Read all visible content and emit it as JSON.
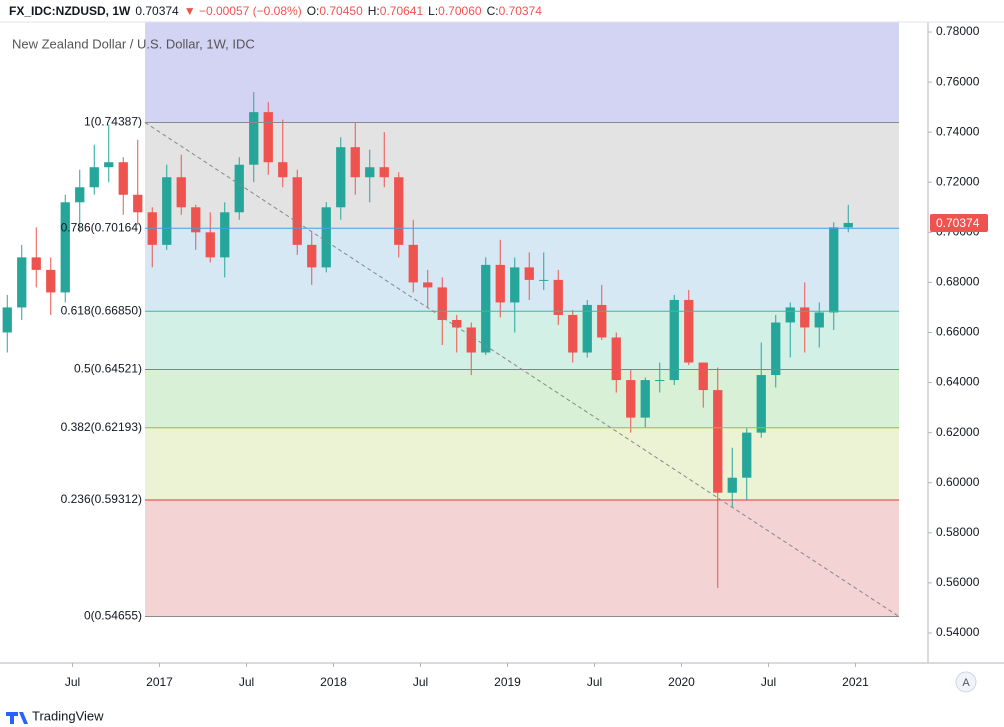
{
  "header": {
    "symbol": "FX_IDC:NZDUSD, 1W",
    "last": "0.70374",
    "change": "▼ −0.00057 (−0.08%)",
    "ohlc": [
      {
        "key": "O:",
        "value": "0.70450"
      },
      {
        "key": "H:",
        "value": "0.70641"
      },
      {
        "key": "L:",
        "value": "0.70060"
      },
      {
        "key": "C:",
        "value": "0.70374"
      }
    ]
  },
  "footer": {
    "brand": "TradingView",
    "button": "A"
  },
  "chart_data": {
    "type": "candlestick",
    "title": "New Zealand Dollar / U.S. Dollar, 1W, IDC",
    "x": [
      "2016-02",
      "2016-03",
      "2016-04",
      "2016-05",
      "2016-06",
      "2016-07",
      "2016-08",
      "2016-09",
      "2016-10",
      "2016-11",
      "2016-12",
      "2017-01",
      "2017-02",
      "2017-03",
      "2017-04",
      "2017-05",
      "2017-06",
      "2017-07",
      "2017-08",
      "2017-09",
      "2017-10",
      "2017-11",
      "2017-12",
      "2018-01",
      "2018-02",
      "2018-03",
      "2018-04",
      "2018-05",
      "2018-06",
      "2018-07",
      "2018-08",
      "2018-09",
      "2018-10",
      "2018-11",
      "2018-12",
      "2019-01",
      "2019-02",
      "2019-03",
      "2019-04",
      "2019-05",
      "2019-06",
      "2019-07",
      "2019-08",
      "2019-09",
      "2019-10",
      "2019-11",
      "2019-12",
      "2020-01",
      "2020-02",
      "2020-03",
      "2020-04",
      "2020-05",
      "2020-06",
      "2020-07",
      "2020-08",
      "2020-09",
      "2020-10",
      "2020-11",
      "2020-12"
    ],
    "open": [
      0.66,
      0.67,
      0.69,
      0.685,
      0.676,
      0.712,
      0.718,
      0.726,
      0.728,
      0.715,
      0.708,
      0.695,
      0.722,
      0.71,
      0.7,
      0.69,
      0.708,
      0.727,
      0.748,
      0.728,
      0.722,
      0.695,
      0.686,
      0.71,
      0.734,
      0.722,
      0.726,
      0.722,
      0.695,
      0.68,
      0.678,
      0.665,
      0.662,
      0.652,
      0.687,
      0.672,
      0.686,
      0.681,
      0.681,
      0.667,
      0.652,
      0.671,
      0.658,
      0.641,
      0.626,
      0.641,
      0.641,
      0.673,
      0.648,
      0.637,
      0.596,
      0.602,
      0.62,
      0.643,
      0.664,
      0.67,
      0.662,
      0.668,
      0.702
    ],
    "high": [
      0.675,
      0.695,
      0.702,
      0.69,
      0.715,
      0.725,
      0.735,
      0.743,
      0.73,
      0.737,
      0.71,
      0.727,
      0.731,
      0.711,
      0.708,
      0.712,
      0.73,
      0.756,
      0.752,
      0.745,
      0.725,
      0.7,
      0.712,
      0.738,
      0.744,
      0.733,
      0.74,
      0.724,
      0.705,
      0.685,
      0.682,
      0.667,
      0.664,
      0.69,
      0.697,
      0.69,
      0.692,
      0.692,
      0.685,
      0.669,
      0.673,
      0.679,
      0.66,
      0.645,
      0.642,
      0.648,
      0.675,
      0.677,
      0.648,
      0.646,
      0.614,
      0.622,
      0.656,
      0.667,
      0.672,
      0.68,
      0.672,
      0.704,
      0.711
    ],
    "low": [
      0.652,
      0.665,
      0.678,
      0.667,
      0.672,
      0.7,
      0.715,
      0.72,
      0.707,
      0.703,
      0.686,
      0.693,
      0.707,
      0.693,
      0.688,
      0.682,
      0.705,
      0.72,
      0.723,
      0.718,
      0.691,
      0.679,
      0.684,
      0.705,
      0.715,
      0.712,
      0.718,
      0.69,
      0.676,
      0.67,
      0.655,
      0.652,
      0.643,
      0.651,
      0.666,
      0.66,
      0.673,
      0.677,
      0.663,
      0.648,
      0.65,
      0.657,
      0.636,
      0.62,
      0.622,
      0.636,
      0.639,
      0.647,
      0.63,
      0.558,
      0.59,
      0.593,
      0.618,
      0.638,
      0.65,
      0.652,
      0.654,
      0.661,
      0.7
    ],
    "close": [
      0.67,
      0.69,
      0.685,
      0.676,
      0.712,
      0.718,
      0.726,
      0.728,
      0.715,
      0.708,
      0.695,
      0.722,
      0.71,
      0.7,
      0.69,
      0.708,
      0.727,
      0.748,
      0.728,
      0.722,
      0.695,
      0.686,
      0.71,
      0.734,
      0.722,
      0.726,
      0.722,
      0.695,
      0.68,
      0.678,
      0.665,
      0.662,
      0.652,
      0.687,
      0.672,
      0.686,
      0.681,
      0.681,
      0.667,
      0.652,
      0.671,
      0.658,
      0.641,
      0.626,
      0.641,
      0.641,
      0.673,
      0.648,
      0.637,
      0.596,
      0.602,
      0.62,
      0.643,
      0.664,
      0.67,
      0.662,
      0.668,
      0.702,
      0.70374
    ],
    "up_color": "#26a69a",
    "down_color": "#ef5350",
    "xlim": [
      "2016-02",
      "2021-06"
    ],
    "xticks": [
      {
        "value": "2016-07",
        "label": "Jul"
      },
      {
        "value": "2017-01",
        "label": "2017"
      },
      {
        "value": "2017-07",
        "label": "Jul"
      },
      {
        "value": "2018-01",
        "label": "2018"
      },
      {
        "value": "2018-07",
        "label": "Jul"
      },
      {
        "value": "2019-01",
        "label": "2019"
      },
      {
        "value": "2019-07",
        "label": "Jul"
      },
      {
        "value": "2020-01",
        "label": "2020"
      },
      {
        "value": "2020-07",
        "label": "Jul"
      },
      {
        "value": "2021-01",
        "label": "2021"
      }
    ],
    "ylim": [
      0.528,
      0.784
    ],
    "yticks": [
      {
        "value": 0.54,
        "label": "0.54000"
      },
      {
        "value": 0.56,
        "label": "0.56000"
      },
      {
        "value": 0.58,
        "label": "0.58000"
      },
      {
        "value": 0.6,
        "label": "0.60000"
      },
      {
        "value": 0.62,
        "label": "0.62000"
      },
      {
        "value": 0.64,
        "label": "0.64000"
      },
      {
        "value": 0.66,
        "label": "0.66000"
      },
      {
        "value": 0.68,
        "label": "0.68000"
      },
      {
        "value": 0.7,
        "label": "0.70000"
      },
      {
        "value": 0.72,
        "label": "0.72000"
      },
      {
        "value": 0.74,
        "label": "0.74000"
      },
      {
        "value": 0.76,
        "label": "0.76000"
      },
      {
        "value": 0.78,
        "label": "0.78000"
      }
    ],
    "last_price": {
      "value": 0.70374,
      "label": "0.70374"
    },
    "fib": {
      "start": "2016-12",
      "end": "2021-04",
      "levels": [
        {
          "value": 0.74387,
          "label": "1(0.74387)",
          "color": "#8a8a8a",
          "fill": "#d3d3f3"
        },
        {
          "value": 0.70164,
          "label": "0.786(0.70164)",
          "color": "#4a9ee0",
          "fill": "#e3e3e3"
        },
        {
          "value": 0.6685,
          "label": "0.618(0.66850)",
          "color": "#2fbf9a",
          "fill": "#d6e8f4"
        },
        {
          "value": 0.64521,
          "label": "0.5(0.64521)",
          "color": "#45b045",
          "fill": "#d2f0e6"
        },
        {
          "value": 0.62193,
          "label": "0.382(0.62193)",
          "color": "#98c028",
          "fill": "#d8f0d5"
        },
        {
          "value": 0.59312,
          "label": "0.236(0.59312)",
          "color": "#e03a3a",
          "fill": "#ecf3d4"
        },
        {
          "value": 0.54655,
          "label": "0(0.54655)",
          "color": "#8a8a8a",
          "fill": "#f3d3d3"
        }
      ]
    }
  }
}
